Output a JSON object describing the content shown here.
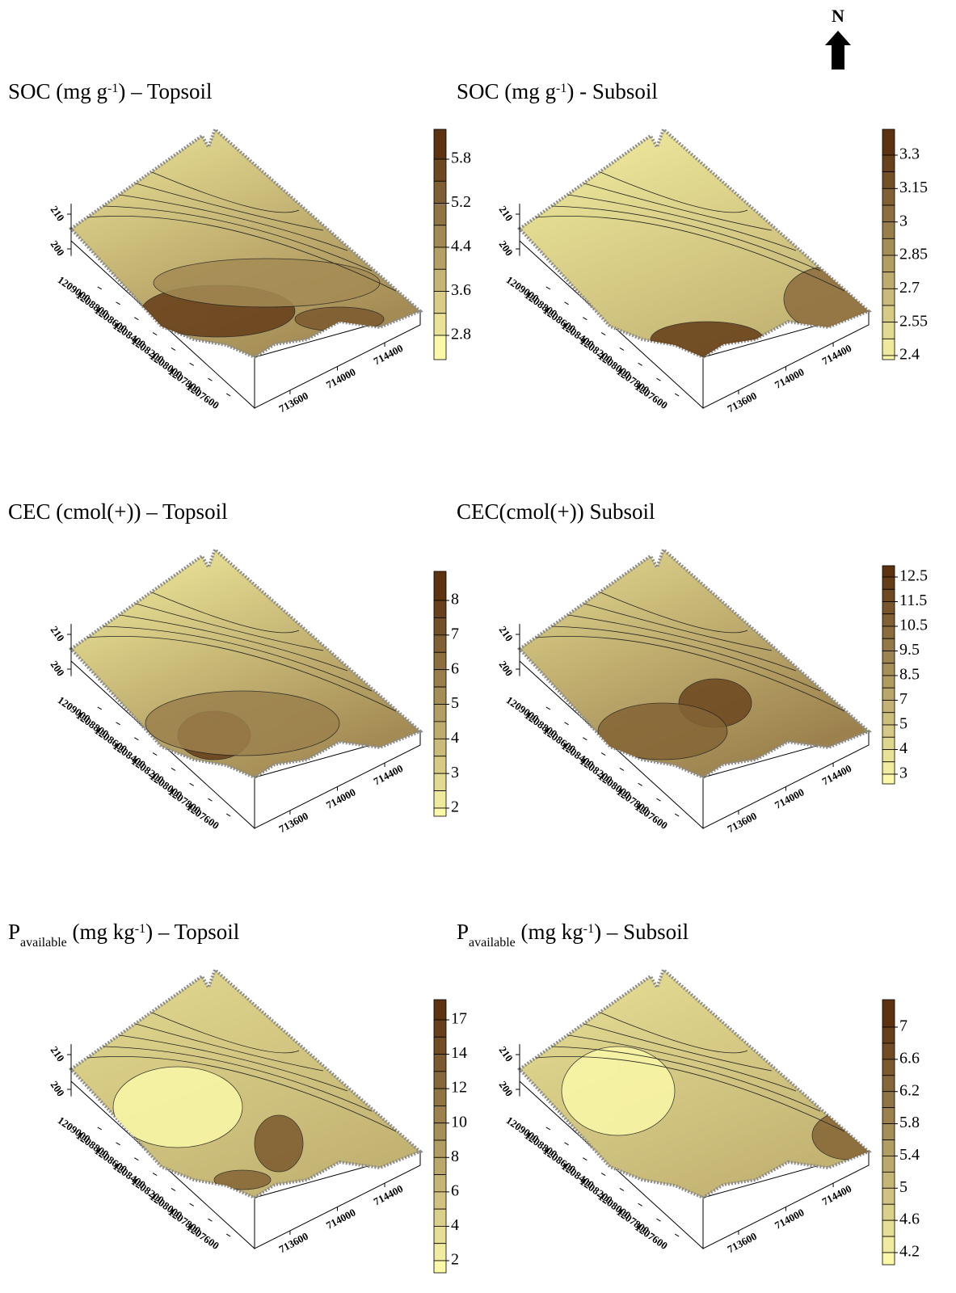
{
  "north_label": "N",
  "chart_data": [
    {
      "type": "contour",
      "title": [
        "SOC (mg g",
        "-1",
        ") – Topsoil"
      ],
      "xticks": [
        713600,
        714000,
        714400
      ],
      "xlim": [
        713300,
        714700
      ],
      "yticks": [
        1209000,
        1208800,
        1208600,
        1208400,
        1208200,
        1208000,
        1207800,
        1207600
      ],
      "ylim": [
        1207400,
        1209200
      ],
      "zticks": [
        210,
        200
      ],
      "zlim": [
        198,
        213
      ],
      "colorbar_ticks": [
        5.8,
        5.2,
        4.4,
        3.6,
        2.8
      ],
      "colors": [
        "#fbf8a8",
        "#5c3210"
      ]
    },
    {
      "type": "contour",
      "title": [
        "SOC (mg g",
        "-1",
        ") - Subsoil"
      ],
      "xticks": [
        713600,
        714000,
        714400
      ],
      "xlim": [
        713300,
        714700
      ],
      "yticks": [
        1209000,
        1208800,
        1208600,
        1208400,
        1208200,
        1208000,
        1207800,
        1207600
      ],
      "ylim": [
        1207400,
        1209200
      ],
      "zticks": [
        210,
        200
      ],
      "zlim": [
        198,
        213
      ],
      "colorbar_ticks": [
        3.3,
        3.15,
        3,
        2.85,
        2.7,
        2.55,
        2.4
      ],
      "colors": [
        "#fbf8a8",
        "#5c3210"
      ]
    },
    {
      "type": "contour",
      "title": [
        "CEC (cmol(+)) – Topsoil"
      ],
      "xticks": [
        713600,
        714000,
        714400
      ],
      "xlim": [
        713300,
        714700
      ],
      "yticks": [
        1209000,
        1208800,
        1208600,
        1208400,
        1208200,
        1208000,
        1207800,
        1207600
      ],
      "ylim": [
        1207400,
        1209200
      ],
      "zticks": [
        210,
        200
      ],
      "zlim": [
        198,
        213
      ],
      "colorbar_ticks": [
        8,
        7,
        6,
        5,
        4,
        3,
        2
      ],
      "colors": [
        "#fbf8a8",
        "#5c3210"
      ]
    },
    {
      "type": "contour",
      "title": [
        "CEC(cmol(+)) Subsoil"
      ],
      "xticks": [
        713600,
        714000,
        714400
      ],
      "xlim": [
        713300,
        714700
      ],
      "yticks": [
        1209000,
        1208800,
        1208600,
        1208400,
        1208200,
        1208000,
        1207800,
        1207600
      ],
      "ylim": [
        1207400,
        1209200
      ],
      "zticks": [
        210,
        200
      ],
      "zlim": [
        198,
        213
      ],
      "colorbar_ticks": [
        12.5,
        11.5,
        10.5,
        9.5,
        8.5,
        7,
        5,
        4,
        3
      ],
      "colors": [
        "#fbf8a8",
        "#5c3210"
      ]
    },
    {
      "type": "contour",
      "title": [
        "P",
        "available",
        " (mg kg",
        "-1",
        ") – Topsoil"
      ],
      "xticks": [
        713600,
        714000,
        714400
      ],
      "xlim": [
        713300,
        714700
      ],
      "yticks": [
        1209000,
        1208800,
        1208600,
        1208400,
        1208200,
        1208000,
        1207800,
        1207600
      ],
      "ylim": [
        1207400,
        1209200
      ],
      "zticks": [
        210,
        200
      ],
      "zlim": [
        198,
        213
      ],
      "colorbar_ticks": [
        17,
        14,
        12,
        10,
        8,
        6,
        4,
        2
      ],
      "colors": [
        "#fbf8a8",
        "#5c3210"
      ]
    },
    {
      "type": "contour",
      "title": [
        "P",
        "available",
        " (mg kg",
        "-1",
        ") – Subsoil"
      ],
      "xticks": [
        713600,
        714000,
        714400
      ],
      "xlim": [
        713300,
        714700
      ],
      "yticks": [
        1209000,
        1208800,
        1208600,
        1208400,
        1208200,
        1208000,
        1207800,
        1207600
      ],
      "ylim": [
        1207400,
        1209200
      ],
      "zticks": [
        210,
        200
      ],
      "zlim": [
        198,
        213
      ],
      "colorbar_ticks": [
        7,
        6.6,
        6.2,
        5.8,
        5.4,
        5,
        4.6,
        4.2
      ],
      "colors": [
        "#fbf8a8",
        "#5c3210"
      ]
    }
  ]
}
